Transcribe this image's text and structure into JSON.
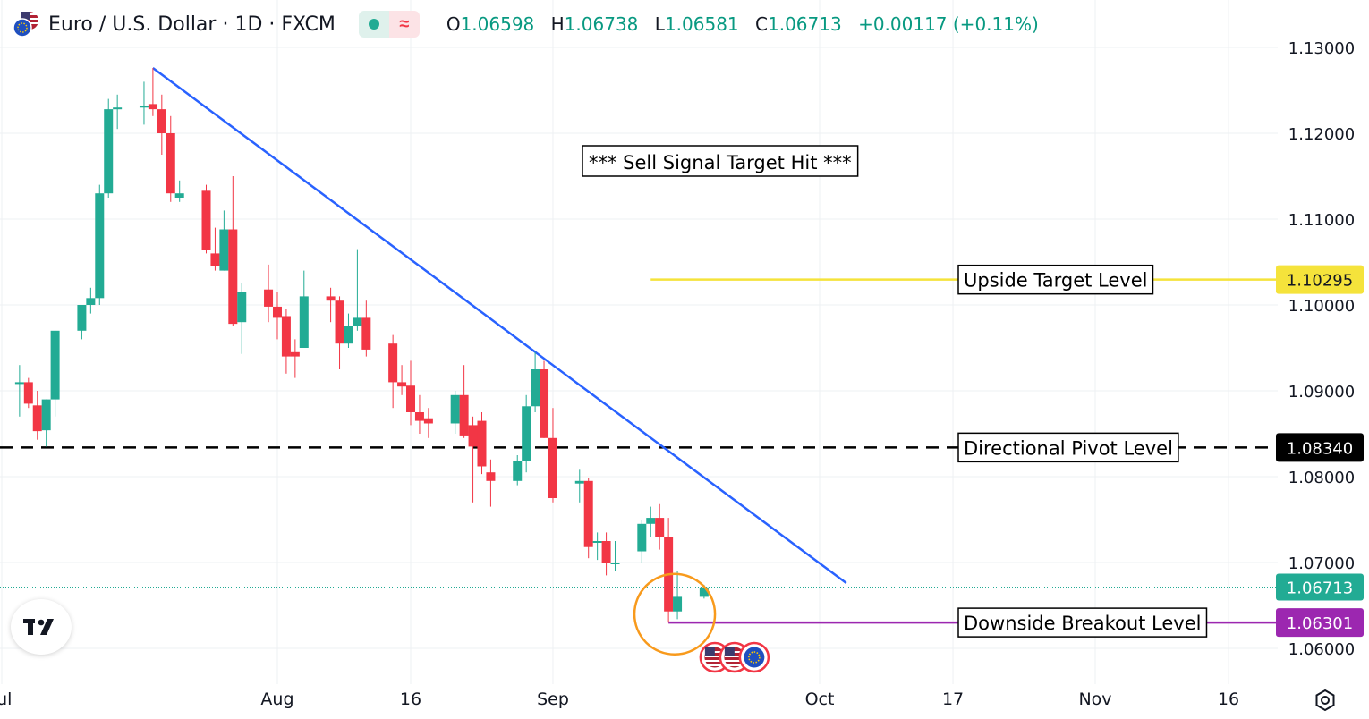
{
  "header": {
    "symbol_title": "Euro / U.S. Dollar · 1D · FXCM",
    "ohlc": {
      "o_label": "O",
      "o_value": "1.06598",
      "h_label": "H",
      "h_value": "1.06738",
      "l_label": "L",
      "l_value": "1.06581",
      "c_label": "C",
      "c_value": "1.06713",
      "change": "+0.00117 (+0.11%)"
    }
  },
  "colors": {
    "up": "#22ab94",
    "down": "#f23645",
    "trendline": "#2962ff",
    "upside_target": "#f5e33b",
    "pivot": "#000000",
    "breakout": "#9c27b0",
    "circle": "#f89a1c",
    "grid": "#eef0f3"
  },
  "chart_data": {
    "type": "candlestick",
    "y_axis": {
      "ylim": [
        1.0569,
        1.1324
      ],
      "ticks": [
        "1.13000",
        "1.12000",
        "1.11000",
        "1.10000",
        "1.09000",
        "1.08000",
        "1.07000",
        "1.06000"
      ]
    },
    "x_axis": {
      "ticks": [
        "Jul",
        "Aug",
        "16",
        "Sep",
        "Oct",
        "17",
        "Nov",
        "16"
      ]
    },
    "candles": [
      {
        "d": "2023-07-03",
        "o": 1.091,
        "h": 1.093,
        "l": 1.087,
        "c": 1.091
      },
      {
        "d": "2023-07-04",
        "o": 1.091,
        "h": 1.0915,
        "l": 1.088,
        "c": 1.0885
      },
      {
        "d": "2023-07-05",
        "o": 1.0883,
        "h": 1.09,
        "l": 1.0843,
        "c": 1.0853
      },
      {
        "d": "2023-07-06",
        "o": 1.0854,
        "h": 1.089,
        "l": 1.0835,
        "c": 1.089
      },
      {
        "d": "2023-07-07",
        "o": 1.089,
        "h": 1.097,
        "l": 1.087,
        "c": 1.097
      },
      {
        "d": "2023-07-10",
        "o": 1.097,
        "h": 1.0995,
        "l": 1.096,
        "c": 1.1
      },
      {
        "d": "2023-07-11",
        "o": 1.1,
        "h": 1.102,
        "l": 1.099,
        "c": 1.1008
      },
      {
        "d": "2023-07-12",
        "o": 1.1008,
        "h": 1.114,
        "l": 1.1,
        "c": 1.113
      },
      {
        "d": "2023-07-13",
        "o": 1.113,
        "h": 1.124,
        "l": 1.1125,
        "c": 1.1228
      },
      {
        "d": "2023-07-14",
        "o": 1.1228,
        "h": 1.1245,
        "l": 1.1205,
        "c": 1.123
      },
      {
        "d": "2023-07-17",
        "o": 1.123,
        "h": 1.126,
        "l": 1.121,
        "c": 1.1232
      },
      {
        "d": "2023-07-18",
        "o": 1.1234,
        "h": 1.1276,
        "l": 1.122,
        "c": 1.1228
      },
      {
        "d": "2023-07-19",
        "o": 1.1228,
        "h": 1.1245,
        "l": 1.1175,
        "c": 1.12
      },
      {
        "d": "2023-07-20",
        "o": 1.12,
        "h": 1.122,
        "l": 1.112,
        "c": 1.113
      },
      {
        "d": "2023-07-21",
        "o": 1.1125,
        "h": 1.1145,
        "l": 1.112,
        "c": 1.113
      },
      {
        "d": "2023-07-24",
        "o": 1.1133,
        "h": 1.114,
        "l": 1.106,
        "c": 1.1064
      },
      {
        "d": "2023-07-25",
        "o": 1.106,
        "h": 1.109,
        "l": 1.104,
        "c": 1.1045
      },
      {
        "d": "2023-07-26",
        "o": 1.104,
        "h": 1.111,
        "l": 1.104,
        "c": 1.1088
      },
      {
        "d": "2023-07-27",
        "o": 1.1088,
        "h": 1.115,
        "l": 1.0975,
        "c": 1.0978
      },
      {
        "d": "2023-07-28",
        "o": 1.098,
        "h": 1.1025,
        "l": 1.0943,
        "c": 1.1015
      },
      {
        "d": "2023-07-31",
        "o": 1.1018,
        "h": 1.1047,
        "l": 1.098,
        "c": 1.0998
      },
      {
        "d": "2023-08-01",
        "o": 1.0998,
        "h": 1.1015,
        "l": 1.096,
        "c": 1.0985
      },
      {
        "d": "2023-08-02",
        "o": 1.0987,
        "h": 1.0995,
        "l": 1.092,
        "c": 1.094
      },
      {
        "d": "2023-08-03",
        "o": 1.0945,
        "h": 1.096,
        "l": 1.0915,
        "c": 1.094
      },
      {
        "d": "2023-08-04",
        "o": 1.095,
        "h": 1.104,
        "l": 1.095,
        "c": 1.101
      },
      {
        "d": "2023-08-07",
        "o": 1.101,
        "h": 1.102,
        "l": 1.098,
        "c": 1.1005
      },
      {
        "d": "2023-08-08",
        "o": 1.1005,
        "h": 1.101,
        "l": 1.0925,
        "c": 1.0955
      },
      {
        "d": "2023-08-09",
        "o": 1.0955,
        "h": 1.099,
        "l": 1.095,
        "c": 1.0975
      },
      {
        "d": "2023-08-10",
        "o": 1.0975,
        "h": 1.1065,
        "l": 1.097,
        "c": 1.0985
      },
      {
        "d": "2023-08-11",
        "o": 1.0985,
        "h": 1.1005,
        "l": 1.094,
        "c": 1.0948
      },
      {
        "d": "2023-08-14",
        "o": 1.0955,
        "h": 1.0965,
        "l": 1.088,
        "c": 1.091
      },
      {
        "d": "2023-08-15",
        "o": 1.091,
        "h": 1.093,
        "l": 1.0895,
        "c": 1.0905
      },
      {
        "d": "2023-08-16",
        "o": 1.0906,
        "h": 1.0935,
        "l": 1.086,
        "c": 1.0875
      },
      {
        "d": "2023-08-17",
        "o": 1.0875,
        "h": 1.0895,
        "l": 1.085,
        "c": 1.0865
      },
      {
        "d": "2023-08-18",
        "o": 1.0868,
        "h": 1.088,
        "l": 1.0845,
        "c": 1.0862
      },
      {
        "d": "2023-08-21",
        "o": 1.0862,
        "h": 1.09,
        "l": 1.085,
        "c": 1.0895
      },
      {
        "d": "2023-08-22",
        "o": 1.0895,
        "h": 1.093,
        "l": 1.0845,
        "c": 1.0848
      },
      {
        "d": "2023-08-23",
        "o": 1.086,
        "h": 1.087,
        "l": 1.077,
        "c": 1.0835
      },
      {
        "d": "2023-08-24",
        "o": 1.0865,
        "h": 1.0875,
        "l": 1.0803,
        "c": 1.0812
      },
      {
        "d": "2023-08-25",
        "o": 1.0805,
        "h": 1.082,
        "l": 1.0765,
        "c": 1.0795
      },
      {
        "d": "2023-08-28",
        "o": 1.0795,
        "h": 1.0825,
        "l": 1.079,
        "c": 1.0818
      },
      {
        "d": "2023-08-29",
        "o": 1.0818,
        "h": 1.0895,
        "l": 1.0805,
        "c": 1.0882
      },
      {
        "d": "2023-08-30",
        "o": 1.0882,
        "h": 1.0945,
        "l": 1.0875,
        "c": 1.0925
      },
      {
        "d": "2023-08-31",
        "o": 1.0925,
        "h": 1.0935,
        "l": 1.0845,
        "c": 1.0845
      },
      {
        "d": "2023-09-01",
        "o": 1.0845,
        "h": 1.088,
        "l": 1.077,
        "c": 1.0775
      },
      {
        "d": "2023-09-04",
        "o": 1.0792,
        "h": 1.0808,
        "l": 1.077,
        "c": 1.0795
      },
      {
        "d": "2023-09-05",
        "o": 1.0795,
        "h": 1.0798,
        "l": 1.0705,
        "c": 1.0718
      },
      {
        "d": "2023-09-06",
        "o": 1.0725,
        "h": 1.0735,
        "l": 1.0703,
        "c": 1.0725
      },
      {
        "d": "2023-09-07",
        "o": 1.0725,
        "h": 1.0735,
        "l": 1.0685,
        "c": 1.07
      },
      {
        "d": "2023-09-08",
        "o": 1.07,
        "h": 1.0725,
        "l": 1.069,
        "c": 1.07
      },
      {
        "d": "2023-09-11",
        "o": 1.0713,
        "h": 1.075,
        "l": 1.07,
        "c": 1.0745
      },
      {
        "d": "2023-09-12",
        "o": 1.0745,
        "h": 1.0765,
        "l": 1.073,
        "c": 1.0752
      },
      {
        "d": "2023-09-13",
        "o": 1.0752,
        "h": 1.0768,
        "l": 1.0715,
        "c": 1.073
      },
      {
        "d": "2023-09-14",
        "o": 1.073,
        "h": 1.0752,
        "l": 1.063,
        "c": 1.0643
      },
      {
        "d": "2023-09-15",
        "o": 1.0643,
        "h": 1.069,
        "l": 1.0634,
        "c": 1.066
      },
      {
        "d": "2023-09-18",
        "o": 1.066,
        "h": 1.0674,
        "l": 1.0658,
        "c": 1.0671
      }
    ],
    "trendline": {
      "from": {
        "d": "2023-07-18",
        "price": 1.1276
      },
      "to": {
        "d": "2023-10-04",
        "price": 1.0676
      }
    },
    "levels": [
      {
        "name": "upside_target",
        "price": 1.10295,
        "label": "Upside Target Level",
        "price_label": "1.10295",
        "from": "2023-09-12"
      },
      {
        "name": "pivot",
        "price": 1.0834,
        "label": "Directional Pivot Level",
        "price_label": "1.08340",
        "from": "2023-07-03"
      },
      {
        "name": "breakout",
        "price": 1.06301,
        "label": "Downside Breakout Level",
        "price_label": "1.06301",
        "from": "2023-09-14"
      }
    ],
    "last_price": {
      "price": 1.06713,
      "label": "1.06713"
    },
    "annotation": "*** Sell Signal Target Hit ***",
    "highlight_circle": {
      "d": "2023-09-15",
      "price": 1.0644
    }
  }
}
